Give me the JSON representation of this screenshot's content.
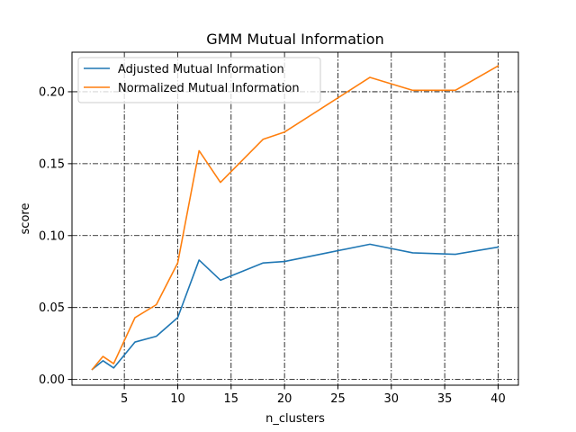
{
  "chart_data": {
    "type": "line",
    "title": "GMM Mutual Information",
    "xlabel": "n_clusters",
    "ylabel": "score",
    "xlim": [
      0.1,
      41.9
    ],
    "ylim": [
      -0.004,
      0.2275
    ],
    "xticks": [
      5,
      10,
      15,
      20,
      25,
      30,
      35,
      40
    ],
    "xtick_labels": [
      "5",
      "10",
      "15",
      "20",
      "25",
      "30",
      "35",
      "40"
    ],
    "yticks": [
      0.0,
      0.05,
      0.1,
      0.15,
      0.2
    ],
    "ytick_labels": [
      "0.00",
      "0.05",
      "0.10",
      "0.15",
      "0.20"
    ],
    "grid": true,
    "legend_position": "top-left",
    "x": [
      2,
      3,
      4,
      6,
      8,
      10,
      12,
      14,
      16,
      18,
      20,
      24,
      28,
      32,
      36,
      40
    ],
    "series": [
      {
        "name": "Adjusted Mutual Information",
        "color": "#1f77b4",
        "values": [
          0.007,
          0.013,
          0.008,
          0.026,
          0.03,
          0.043,
          0.083,
          0.069,
          0.075,
          0.081,
          0.082,
          0.088,
          0.094,
          0.088,
          0.087,
          0.092
        ]
      },
      {
        "name": "Normalized Mutual Information",
        "color": "#ff7f0e",
        "values": [
          0.007,
          0.016,
          0.011,
          0.043,
          0.052,
          0.081,
          0.159,
          0.137,
          0.152,
          0.167,
          0.172,
          0.191,
          0.21,
          0.201,
          0.201,
          0.218
        ]
      }
    ]
  }
}
